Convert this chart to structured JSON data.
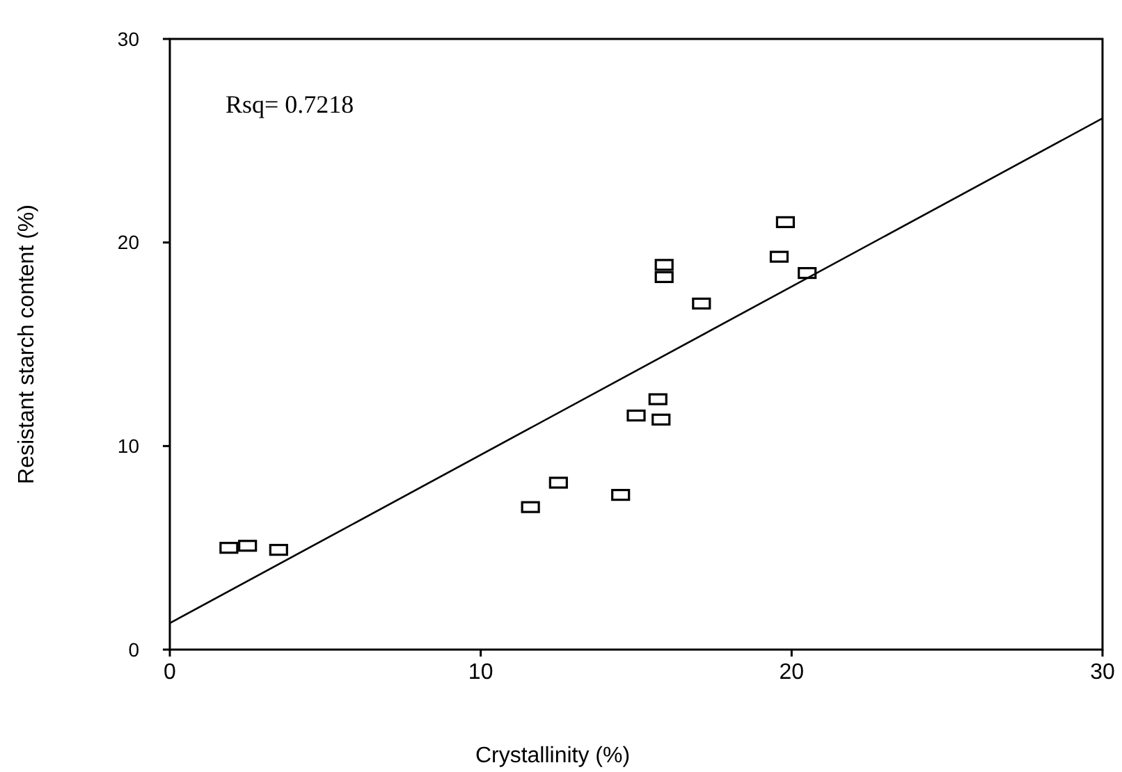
{
  "chart_data": {
    "type": "scatter",
    "xlabel": "Crystallinity (%)",
    "ylabel": "Resistant starch content (%)",
    "annotations": [
      "Rsq= 0.7218"
    ],
    "xlim": [
      0,
      30
    ],
    "ylim": [
      0,
      30
    ],
    "xticks": [
      0,
      10,
      20,
      30
    ],
    "yticks": [
      0,
      10,
      20,
      30
    ],
    "grid": false,
    "series": [
      {
        "color": "#000000",
        "marker": "square",
        "x": [
          1.9,
          2.5,
          3.5,
          11.6,
          12.5,
          14.5,
          15.0,
          15.7,
          15.8,
          15.9,
          15.9,
          17.1,
          19.6,
          19.8,
          20.5
        ],
        "values": [
          5.0,
          5.1,
          4.9,
          7.0,
          8.2,
          7.6,
          11.5,
          12.3,
          11.3,
          18.9,
          18.3,
          17.0,
          19.3,
          21.0,
          18.5
        ]
      },
      {
        "type": "line",
        "color": "#000000",
        "marker": "none",
        "line_style": "solid",
        "x": [
          0,
          30
        ],
        "values": [
          1.3,
          26.1
        ]
      }
    ]
  }
}
